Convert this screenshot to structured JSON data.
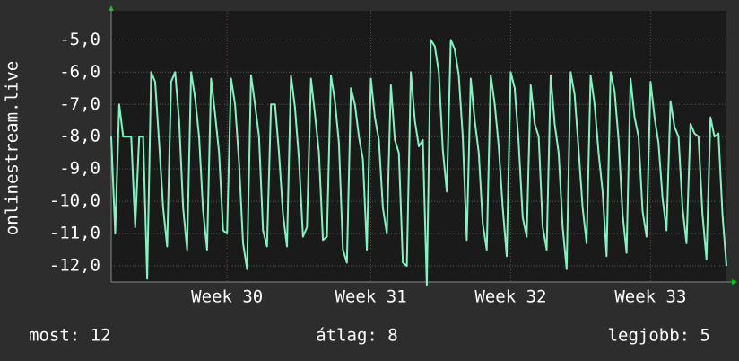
{
  "chart_data": {
    "type": "line",
    "ylabel": "onlinestream.live",
    "color": "#84f2c0",
    "grid": true,
    "ylim": [
      -12.5,
      -4.1
    ],
    "yticks": [
      {
        "value": -5,
        "label": "-5,0"
      },
      {
        "value": -6,
        "label": "-6,0"
      },
      {
        "value": -7,
        "label": "-7,0"
      },
      {
        "value": -8,
        "label": "-8,0"
      },
      {
        "value": -9,
        "label": "-9,0"
      },
      {
        "value": -10,
        "label": "-10,0"
      },
      {
        "value": -11,
        "label": "-11,0"
      },
      {
        "value": -12,
        "label": "-12,0"
      }
    ],
    "xlim": [
      0,
      154
    ],
    "xticks": [
      {
        "value": 29,
        "label": "Week 30"
      },
      {
        "value": 65,
        "label": "Week 31"
      },
      {
        "value": 100,
        "label": "Week 32"
      },
      {
        "value": 135,
        "label": "Week 33"
      }
    ],
    "values": [
      -8,
      -11,
      -7,
      -8,
      -8,
      -8,
      -10.8,
      -8,
      -8,
      -12.4,
      -6,
      -6.3,
      -8.2,
      -10.2,
      -11.4,
      -6.3,
      -6,
      -7.5,
      -10.2,
      -11.5,
      -6,
      -6.8,
      -8,
      -10.3,
      -11.5,
      -6.2,
      -7.3,
      -8.5,
      -10.9,
      -11,
      -6.2,
      -7,
      -8.8,
      -11.3,
      -12.1,
      -6.1,
      -7,
      -8,
      -10.9,
      -11.4,
      -7,
      -7,
      -8.5,
      -10.4,
      -11.4,
      -6.1,
      -7.1,
      -8.7,
      -11.1,
      -10.8,
      -6.2,
      -7.3,
      -8.5,
      -11.2,
      -11.1,
      -6.1,
      -6.9,
      -8.2,
      -11.5,
      -11.9,
      -6.5,
      -7,
      -8,
      -8.7,
      -11.5,
      -6.2,
      -7.4,
      -8.1,
      -10.2,
      -11,
      -6.4,
      -8.1,
      -8.5,
      -11.9,
      -12,
      -6,
      -7.5,
      -8.3,
      -8.1,
      -12.6,
      -5,
      -5.2,
      -6,
      -8.4,
      -9.7,
      -5,
      -5.3,
      -6.1,
      -8,
      -11.2,
      -6.2,
      -7.5,
      -8.5,
      -10.7,
      -11.5,
      -6.1,
      -7,
      -8.3,
      -10.2,
      -11.7,
      -6,
      -6.5,
      -8.2,
      -10.5,
      -11.1,
      -6.4,
      -7.6,
      -8,
      -10.8,
      -11.5,
      -6.1,
      -7.6,
      -8.5,
      -10.8,
      -12.1,
      -6,
      -6.7,
      -8.4,
      -10.2,
      -11.3,
      -6.1,
      -7,
      -8.5,
      -9.7,
      -11.7,
      -6,
      -6.6,
      -8.1,
      -10.4,
      -11.6,
      -6.2,
      -7.4,
      -8,
      -10.3,
      -11.1,
      -6.3,
      -7.4,
      -8.2,
      -9.9,
      -10.9,
      -6.9,
      -7.7,
      -8,
      -10.2,
      -11.3,
      -7.6,
      -7.9,
      -8,
      -10.4,
      -11.8,
      -7.4,
      -8,
      -7.9,
      -10.4,
      -12
    ],
    "footer": {
      "current": "most: 12",
      "average": "átlag: 8",
      "best": "legjobb: 5"
    }
  }
}
